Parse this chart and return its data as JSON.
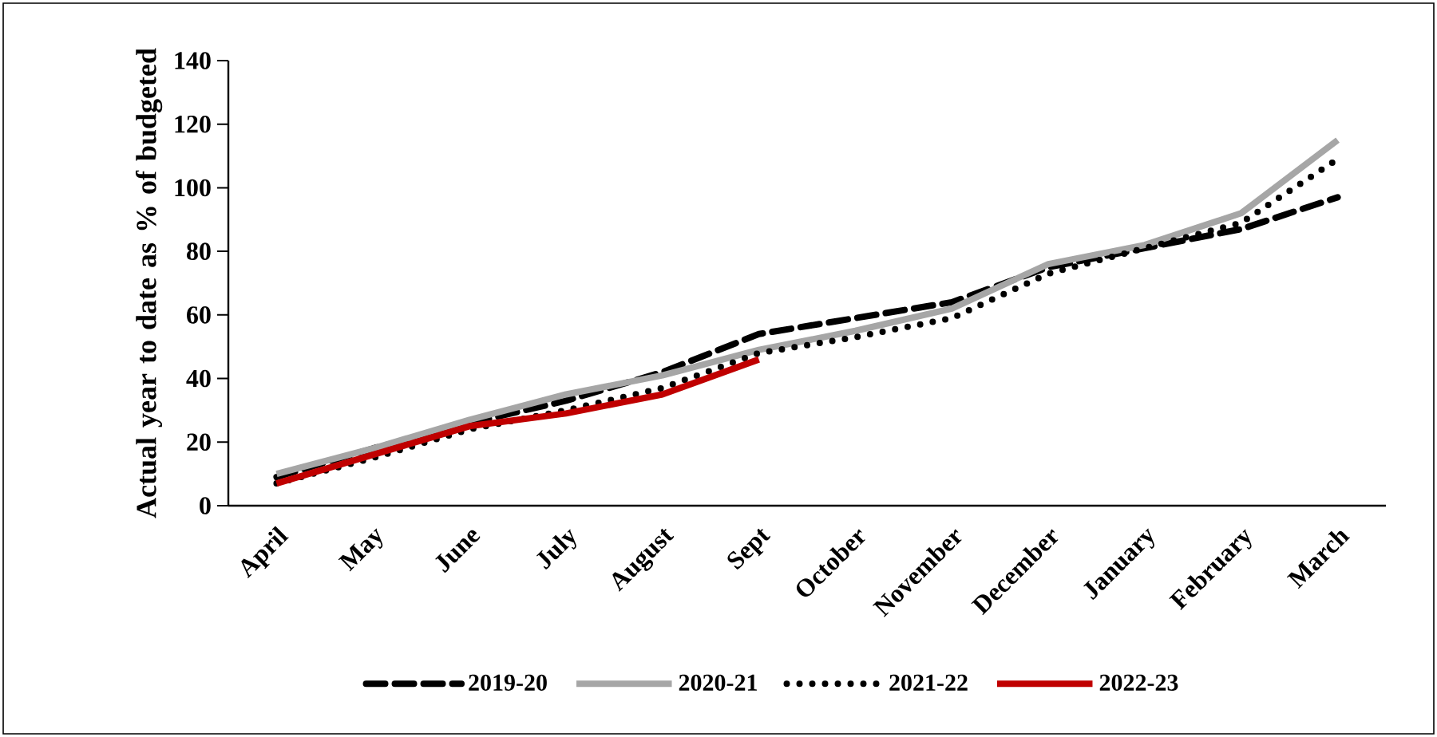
{
  "chart_data": {
    "type": "line",
    "ylabel": "Actual year to date as % of budgeted",
    "categories": [
      "April",
      "May",
      "June",
      "July",
      "August",
      "Sept",
      "October",
      "November",
      "December",
      "January",
      "February",
      "March"
    ],
    "series": [
      {
        "name": "2019-20",
        "color": "#000000",
        "line_style": "dashed",
        "values": [
          9,
          18,
          26,
          33,
          42,
          54,
          59,
          64,
          75,
          81,
          87,
          97
        ]
      },
      {
        "name": "2020-21",
        "color": "#a6a6a6",
        "line_style": "solid",
        "values": [
          10,
          18,
          27,
          35,
          41,
          49,
          55,
          62,
          76,
          82,
          92,
          115
        ]
      },
      {
        "name": "2021-22",
        "color": "#000000",
        "line_style": "dotted",
        "values": [
          7,
          15,
          24,
          30,
          37,
          48,
          53,
          59,
          73,
          81,
          89,
          109
        ]
      },
      {
        "name": "2022-23",
        "color": "#c00000",
        "line_style": "solid",
        "values": [
          7,
          16,
          25,
          29,
          35,
          46,
          null,
          null,
          null,
          null,
          null,
          null
        ]
      }
    ],
    "ylim": [
      0,
      140
    ],
    "yticks": [
      0,
      20,
      40,
      60,
      80,
      100,
      120,
      140
    ],
    "grid": false,
    "legend": "bottom",
    "marker": "none"
  }
}
